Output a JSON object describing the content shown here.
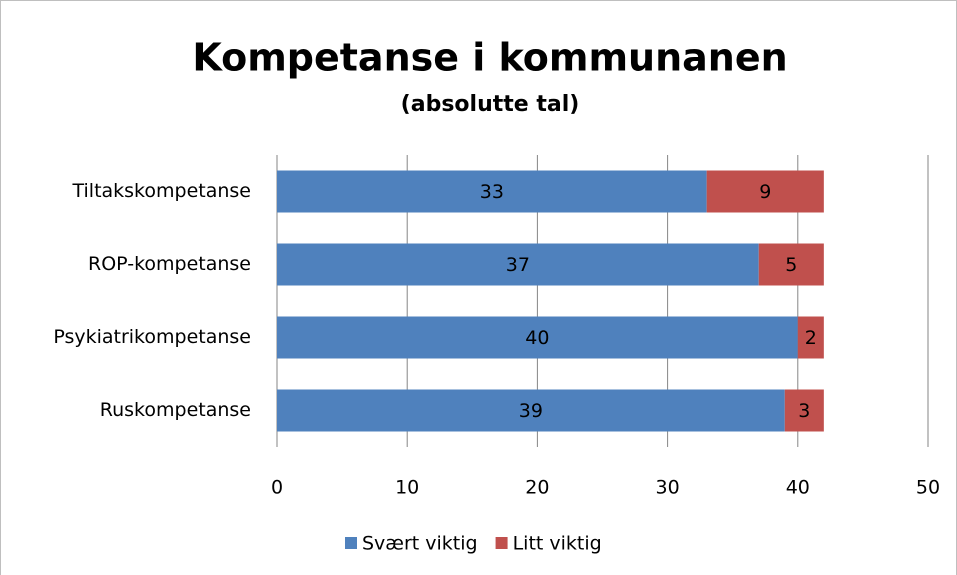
{
  "chart_data": {
    "type": "bar",
    "orientation": "horizontal",
    "stacked": true,
    "title": "Kompetanse i kommunanen",
    "subtitle": "(absolutte tal)",
    "categories": [
      "Tiltakskompetanse",
      "ROP-kompetanse",
      "Psykiatrikompetanse",
      "Ruskompetanse"
    ],
    "series": [
      {
        "name": "Svært viktig",
        "color": "#4f81bd",
        "values": [
          33,
          37,
          40,
          39
        ]
      },
      {
        "name": "Litt viktig",
        "color": "#c0504d",
        "values": [
          9,
          5,
          2,
          3
        ]
      }
    ],
    "xlim": [
      0,
      50
    ],
    "xticks": [
      0,
      10,
      20,
      30,
      40,
      50
    ],
    "grid": true,
    "legend": "bottom"
  }
}
